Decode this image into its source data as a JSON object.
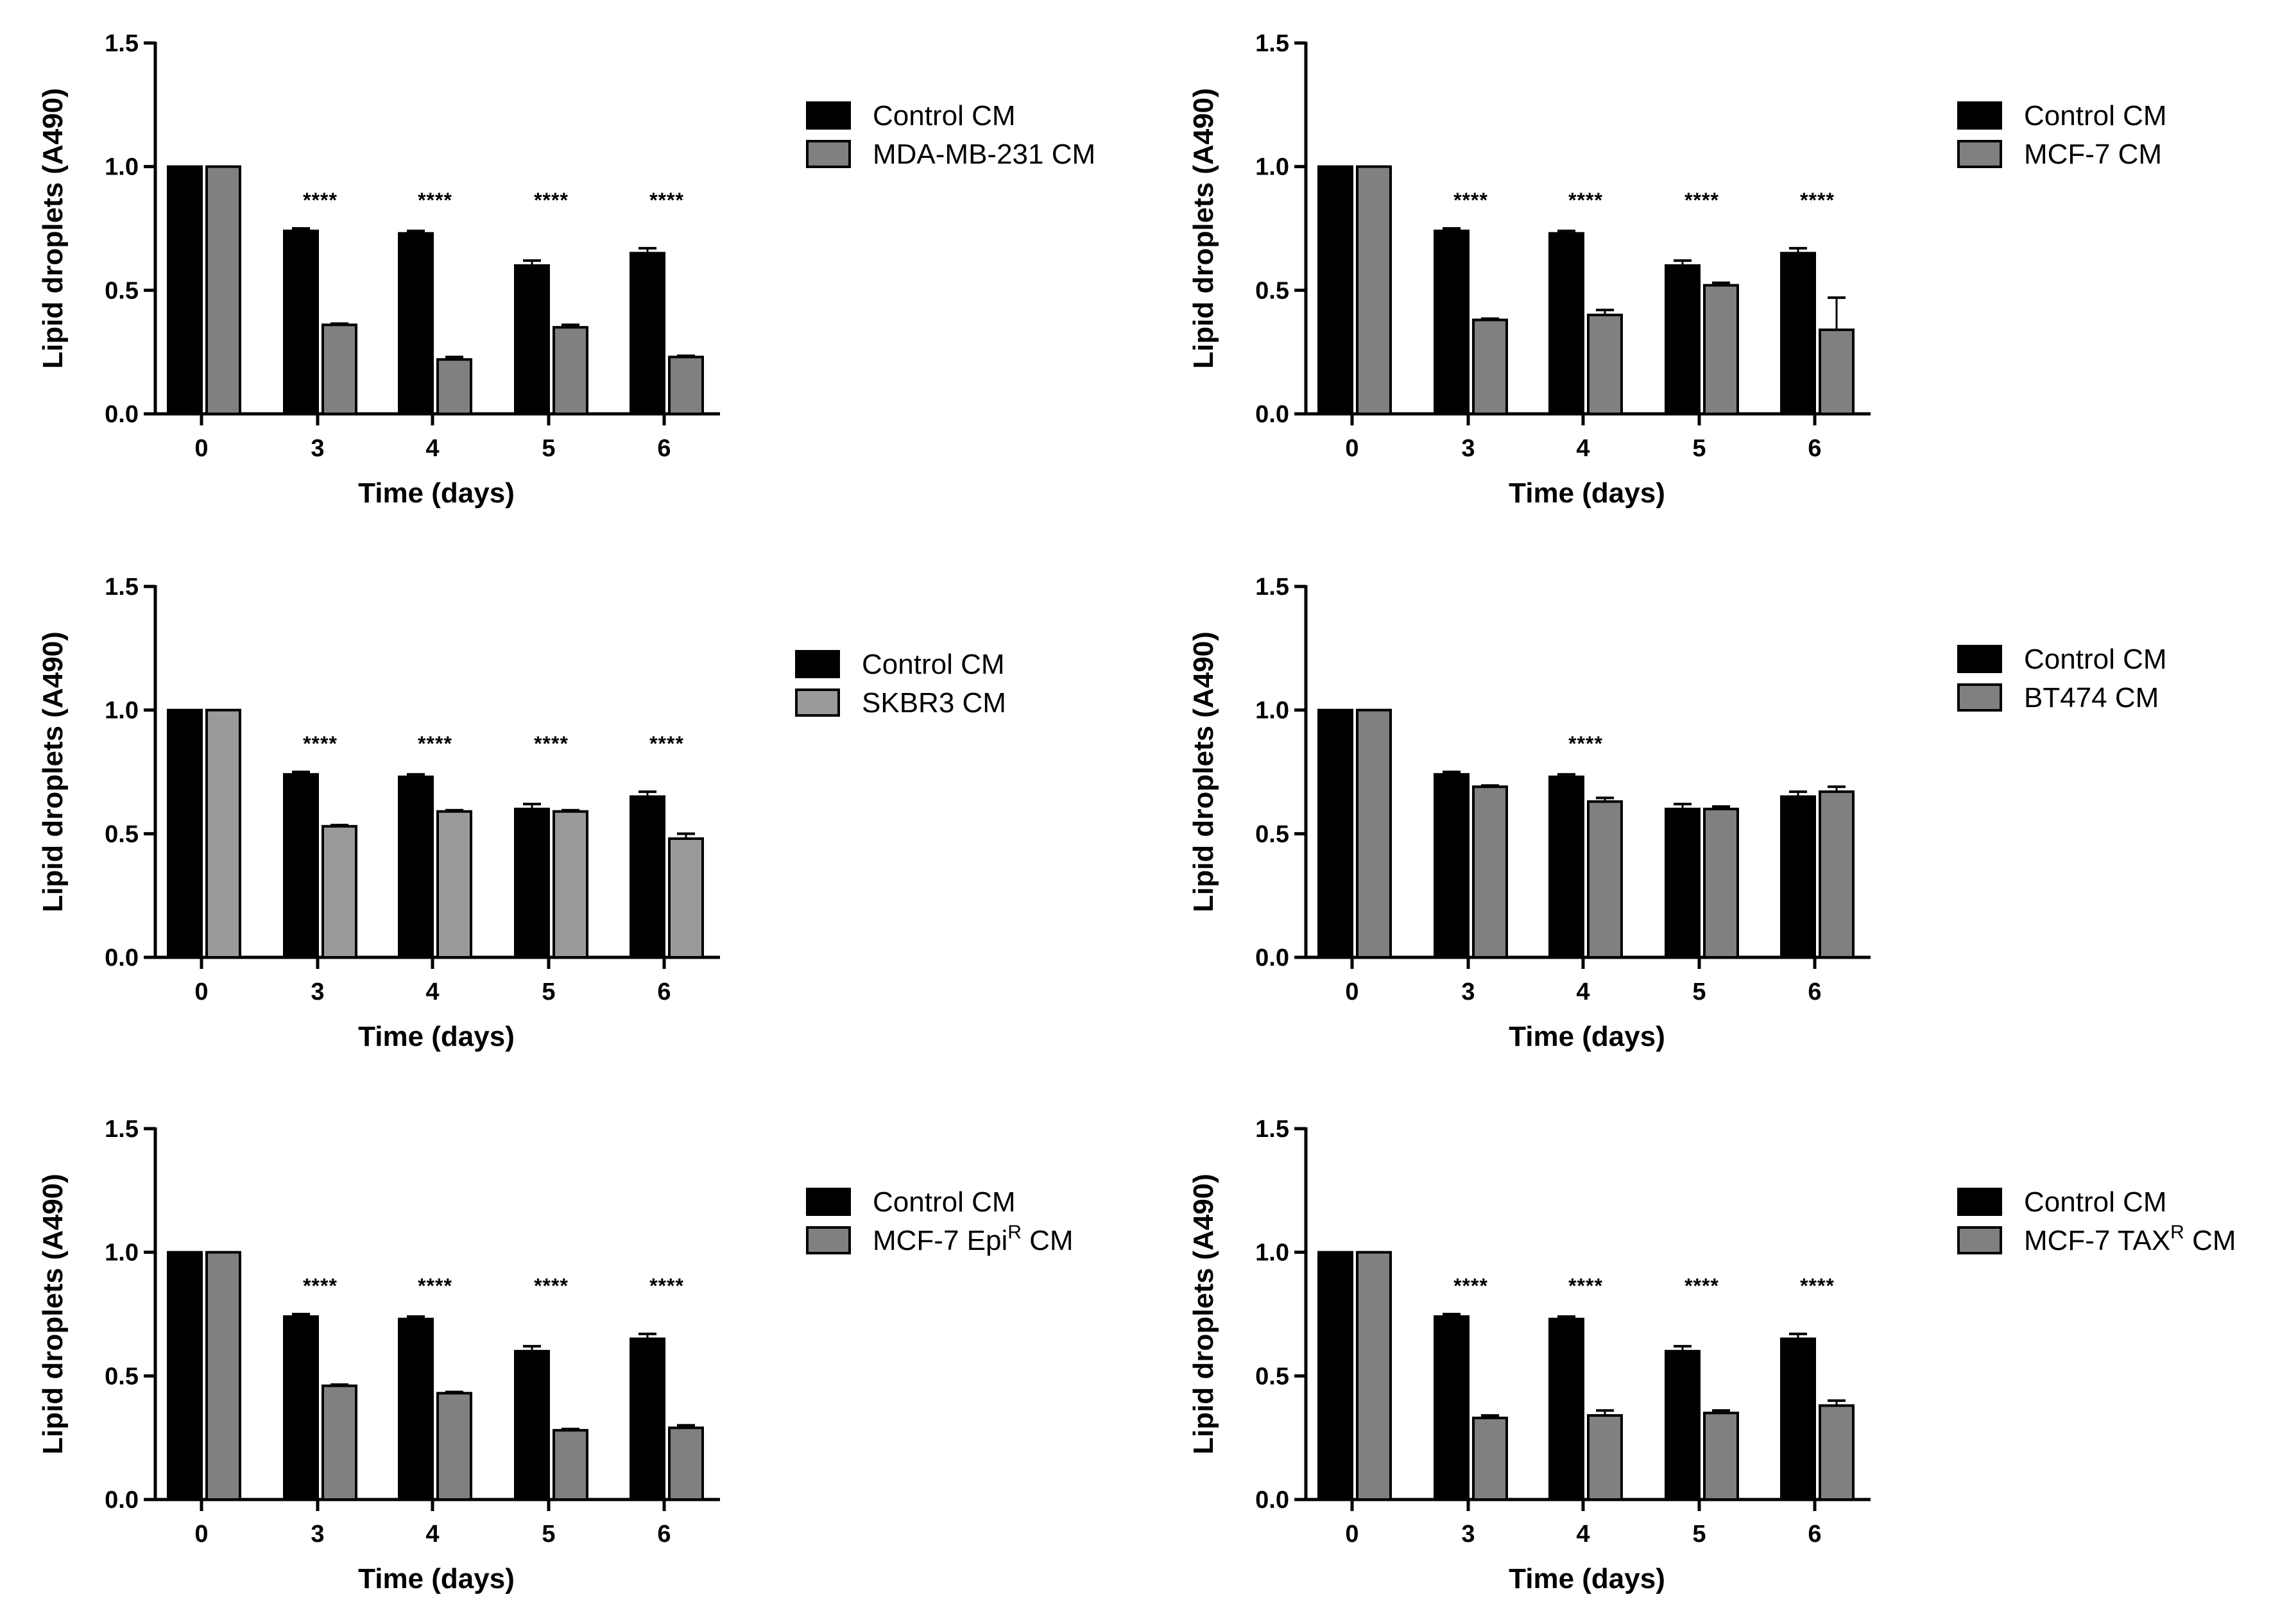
{
  "chart_data": [
    {
      "type": "bar",
      "xlabel": "Time (days)",
      "ylabel": "Lipid droplets (A490)",
      "ylim": [
        0,
        1.5
      ],
      "yticks": [
        "0.0",
        "0.5",
        "1.0",
        "1.5"
      ],
      "categories": [
        "0",
        "3",
        "4",
        "5",
        "6"
      ],
      "series": [
        {
          "name": "Control CM",
          "values": [
            1.0,
            0.74,
            0.73,
            0.6,
            0.65
          ],
          "errors": [
            0,
            0.01,
            0.01,
            0.02,
            0.02
          ]
        },
        {
          "name": "MDA-MB-231 CM",
          "values": [
            1.0,
            0.36,
            0.22,
            0.35,
            0.23
          ],
          "errors": [
            0,
            0.005,
            0.01,
            0.01,
            0.005
          ]
        }
      ],
      "significance": [
        "",
        "****",
        "****",
        "****",
        "****"
      ],
      "colors": [
        "#000000",
        "#808080"
      ]
    },
    {
      "type": "bar",
      "xlabel": "Time (days)",
      "ylabel": "Lipid droplets (A490)",
      "ylim": [
        0,
        1.5
      ],
      "yticks": [
        "0.0",
        "0.5",
        "1.0",
        "1.5"
      ],
      "categories": [
        "0",
        "3",
        "4",
        "5",
        "6"
      ],
      "series": [
        {
          "name": "Control CM",
          "values": [
            1.0,
            0.74,
            0.73,
            0.6,
            0.65
          ],
          "errors": [
            0,
            0.01,
            0.01,
            0.02,
            0.02
          ]
        },
        {
          "name": "MCF-7 CM",
          "values": [
            1.0,
            0.38,
            0.4,
            0.52,
            0.34
          ],
          "errors": [
            0,
            0.005,
            0.02,
            0.01,
            0.13
          ]
        }
      ],
      "significance": [
        "",
        "****",
        "****",
        "****",
        "****"
      ],
      "colors": [
        "#000000",
        "#808080"
      ]
    },
    {
      "type": "bar",
      "xlabel": "Time (days)",
      "ylabel": "Lipid droplets (A490)",
      "ylim": [
        0,
        1.5
      ],
      "yticks": [
        "0.0",
        "0.5",
        "1.0",
        "1.5"
      ],
      "categories": [
        "0",
        "3",
        "4",
        "5",
        "6"
      ],
      "series": [
        {
          "name": "Control CM",
          "values": [
            1.0,
            0.74,
            0.73,
            0.6,
            0.65
          ],
          "errors": [
            0,
            0.01,
            0.01,
            0.02,
            0.02
          ]
        },
        {
          "name": "SKBR3 CM",
          "values": [
            1.0,
            0.53,
            0.59,
            0.59,
            0.48
          ],
          "errors": [
            0,
            0.005,
            0.005,
            0.005,
            0.02
          ]
        }
      ],
      "significance": [
        "",
        "****",
        "****",
        "****",
        "****"
      ],
      "colors": [
        "#000000",
        "#9a9a9a"
      ]
    },
    {
      "type": "bar",
      "xlabel": "Time (days)",
      "ylabel": "Lipid droplets (A490)",
      "ylim": [
        0,
        1.5
      ],
      "yticks": [
        "0.0",
        "0.5",
        "1.0",
        "1.5"
      ],
      "categories": [
        "0",
        "3",
        "4",
        "5",
        "6"
      ],
      "series": [
        {
          "name": "Control CM",
          "values": [
            1.0,
            0.74,
            0.73,
            0.6,
            0.65
          ],
          "errors": [
            0,
            0.01,
            0.01,
            0.02,
            0.02
          ]
        },
        {
          "name": "BT474 CM",
          "values": [
            1.0,
            0.69,
            0.63,
            0.6,
            0.67
          ],
          "errors": [
            0,
            0.005,
            0.015,
            0.01,
            0.02
          ]
        }
      ],
      "significance": [
        "",
        "",
        "****",
        "",
        ""
      ],
      "colors": [
        "#000000",
        "#808080"
      ]
    },
    {
      "type": "bar",
      "xlabel": "Time (days)",
      "ylabel": "Lipid droplets (A490)",
      "ylim": [
        0,
        1.5
      ],
      "yticks": [
        "0.0",
        "0.5",
        "1.0",
        "1.5"
      ],
      "categories": [
        "0",
        "3",
        "4",
        "5",
        "6"
      ],
      "series": [
        {
          "name": "Control CM",
          "values": [
            1.0,
            0.74,
            0.73,
            0.6,
            0.65
          ],
          "errors": [
            0,
            0.01,
            0.01,
            0.02,
            0.02
          ]
        },
        {
          "name": "MCF-7 Epi",
          "name_sup": "R",
          "name_tail": " CM",
          "values": [
            1.0,
            0.46,
            0.43,
            0.28,
            0.29
          ],
          "errors": [
            0,
            0.005,
            0.005,
            0.005,
            0.01
          ]
        }
      ],
      "significance": [
        "",
        "****",
        "****",
        "****",
        "****"
      ],
      "colors": [
        "#000000",
        "#808080"
      ]
    },
    {
      "type": "bar",
      "xlabel": "Time (days)",
      "ylabel": "Lipid droplets (A490)",
      "ylim": [
        0,
        1.5
      ],
      "yticks": [
        "0.0",
        "0.5",
        "1.0",
        "1.5"
      ],
      "categories": [
        "0",
        "3",
        "4",
        "5",
        "6"
      ],
      "series": [
        {
          "name": "Control CM",
          "values": [
            1.0,
            0.74,
            0.73,
            0.6,
            0.65
          ],
          "errors": [
            0,
            0.01,
            0.01,
            0.02,
            0.02
          ]
        },
        {
          "name": "MCF-7 TAX",
          "name_sup": "R",
          "name_tail": " CM",
          "values": [
            1.0,
            0.33,
            0.34,
            0.35,
            0.38
          ],
          "errors": [
            0,
            0.01,
            0.02,
            0.01,
            0.02
          ]
        }
      ],
      "significance": [
        "",
        "****",
        "****",
        "****",
        "****"
      ],
      "colors": [
        "#000000",
        "#808080"
      ]
    }
  ]
}
